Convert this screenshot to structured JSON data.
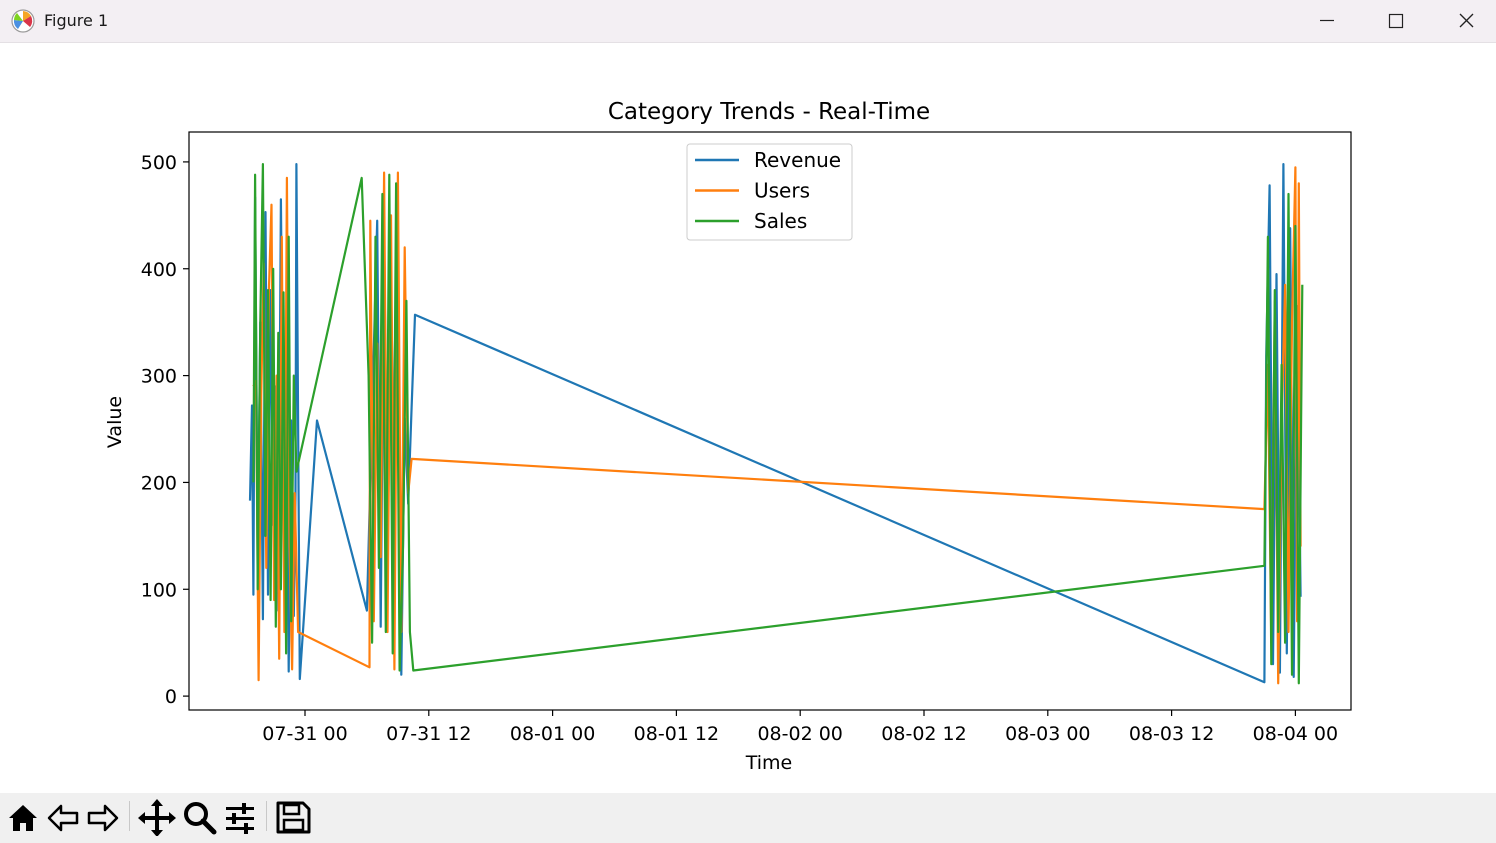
{
  "window": {
    "title": "Figure 1",
    "icons": {
      "app": "matplotlib-logo-icon",
      "minimize": "minimize-icon",
      "maximize": "maximize-icon",
      "close": "close-icon"
    }
  },
  "chart_data": {
    "type": "line",
    "title": "Category Trends - Real-Time",
    "xlabel": "Time",
    "ylabel": "Value",
    "x_axis": {
      "kind": "date",
      "tick_labels": [
        "07-31 00",
        "07-31 12",
        "08-01 00",
        "08-01 12",
        "08-02 00",
        "08-02 12",
        "08-03 00",
        "08-03 12",
        "08-04 00"
      ]
    },
    "y_axis": {
      "ticks": [
        0,
        100,
        200,
        300,
        400,
        500
      ],
      "ylim": [
        -13,
        528
      ]
    },
    "legend": {
      "placement": "upper center"
    },
    "grid": false,
    "series": [
      {
        "name": "Revenue",
        "color": "#1f77b4",
        "x": [
          "07-30 18:40",
          "07-30 18:52",
          "07-30 19:00",
          "07-30 19:10",
          "07-30 19:25",
          "07-30 19:40",
          "07-30 19:55",
          "07-30 20:10",
          "07-30 20:25",
          "07-30 20:40",
          "07-30 20:55",
          "07-30 21:10",
          "07-30 21:25",
          "07-30 21:40",
          "07-30 21:55",
          "07-30 22:10",
          "07-30 22:25",
          "07-30 22:40",
          "07-30 22:55",
          "07-30 23:05",
          "07-30 23:10",
          "07-30 23:30",
          "07-31 01:10",
          "07-31 06:00",
          "07-31 07:00",
          "07-31 07:20",
          "07-31 07:40",
          "07-31 08:00",
          "07-31 08:20",
          "07-31 08:40",
          "07-31 09:00",
          "07-31 09:20",
          "07-31 09:40",
          "07-31 10:00",
          "07-31 10:20",
          "07-31 10:40",
          "08-03 21:00",
          "08-03 21:10",
          "08-03 21:30",
          "08-03 21:50",
          "08-03 22:10",
          "08-03 22:30",
          "08-03 22:50",
          "08-03 23:10",
          "08-03 23:30",
          "08-03 23:50",
          "08-04 00:10",
          "08-04 00:30"
        ],
        "values": [
          183,
          272,
          95,
          467,
          130,
          350,
          72,
          453,
          95,
          380,
          160,
          290,
          80,
          465,
          195,
          320,
          23,
          258,
          75,
          190,
          498,
          16,
          258,
          80,
          445,
          65,
          438,
          120,
          390,
          175,
          330,
          20,
          260,
          180,
          270,
          357,
          13,
          318,
          478,
          30,
          395,
          22,
          498,
          40,
          438,
          18,
          365,
          93
        ]
      },
      {
        "name": "Users",
        "color": "#ff7f0e",
        "x": [
          "07-30 19:00",
          "07-30 19:15",
          "07-30 19:30",
          "07-30 19:45",
          "07-30 20:00",
          "07-30 20:15",
          "07-30 20:30",
          "07-30 20:45",
          "07-30 21:00",
          "07-30 21:15",
          "07-30 21:30",
          "07-30 21:45",
          "07-30 22:00",
          "07-30 22:15",
          "07-30 22:30",
          "07-30 22:45",
          "07-30 23:00",
          "07-30 23:20",
          "07-31 06:15",
          "07-31 06:20",
          "07-31 06:40",
          "07-31 07:00",
          "07-31 07:20",
          "07-31 07:40",
          "07-31 08:00",
          "07-31 08:20",
          "07-31 08:40",
          "07-31 09:00",
          "07-31 09:20",
          "07-31 09:40",
          "07-31 10:00",
          "07-31 10:20",
          "08-03 21:00",
          "08-03 21:20",
          "08-03 21:40",
          "08-03 22:00",
          "08-03 22:20",
          "08-03 22:40",
          "08-03 23:00",
          "08-03 23:20",
          "08-03 23:40",
          "08-04 00:00",
          "08-04 00:10",
          "08-04 00:20",
          "08-04 00:30"
        ],
        "values": [
          290,
          295,
          15,
          280,
          405,
          120,
          380,
          460,
          90,
          300,
          35,
          430,
          60,
          485,
          140,
          25,
          190,
          60,
          27,
          445,
          70,
          330,
          130,
          490,
          60,
          450,
          25,
          490,
          60,
          420,
          190,
          222,
          175,
          310,
          50,
          370,
          12,
          255,
          385,
          60,
          350,
          495,
          70,
          480,
          140
        ]
      },
      {
        "name": "Sales",
        "color": "#2ca02c",
        "x": [
          "07-30 19:00",
          "07-30 19:10",
          "07-30 19:25",
          "07-30 19:40",
          "07-30 19:55",
          "07-30 20:10",
          "07-30 20:25",
          "07-30 20:40",
          "07-30 20:55",
          "07-30 21:10",
          "07-30 21:25",
          "07-30 21:40",
          "07-30 21:55",
          "07-30 22:10",
          "07-30 22:25",
          "07-30 22:40",
          "07-30 22:55",
          "07-30 23:10",
          "07-31 05:30",
          "07-31 06:10",
          "07-31 06:30",
          "07-31 06:50",
          "07-31 07:10",
          "07-31 07:30",
          "07-31 07:50",
          "07-31 08:10",
          "07-31 08:30",
          "07-31 08:50",
          "07-31 09:10",
          "07-31 09:30",
          "07-31 09:50",
          "07-31 10:10",
          "07-31 10:30",
          "08-03 21:00",
          "08-03 21:20",
          "08-03 21:40",
          "08-03 22:00",
          "08-03 22:20",
          "08-03 22:40",
          "08-03 23:00",
          "08-03 23:20",
          "08-03 23:40",
          "08-04 00:00",
          "08-04 00:20",
          "08-04 00:40"
        ],
        "values": [
          200,
          488,
          100,
          350,
          498,
          150,
          380,
          90,
          400,
          65,
          340,
          100,
          378,
          40,
          430,
          70,
          300,
          210,
          485,
          300,
          50,
          430,
          120,
          470,
          60,
          488,
          40,
          480,
          24,
          140,
          370,
          60,
          24,
          122,
          430,
          30,
          380,
          60,
          310,
          50,
          470,
          20,
          440,
          12,
          385
        ]
      }
    ]
  },
  "toolbar": {
    "buttons": [
      {
        "name": "home-button",
        "icon": "home-icon"
      },
      {
        "name": "back-button",
        "icon": "arrow-left-icon"
      },
      {
        "name": "forward-button",
        "icon": "arrow-right-icon"
      },
      {
        "name": "pan-button",
        "icon": "move-icon"
      },
      {
        "name": "zoom-button",
        "icon": "magnifier-icon"
      },
      {
        "name": "configure-subplots-button",
        "icon": "sliders-icon"
      },
      {
        "name": "save-button",
        "icon": "floppy-disk-icon"
      }
    ]
  }
}
